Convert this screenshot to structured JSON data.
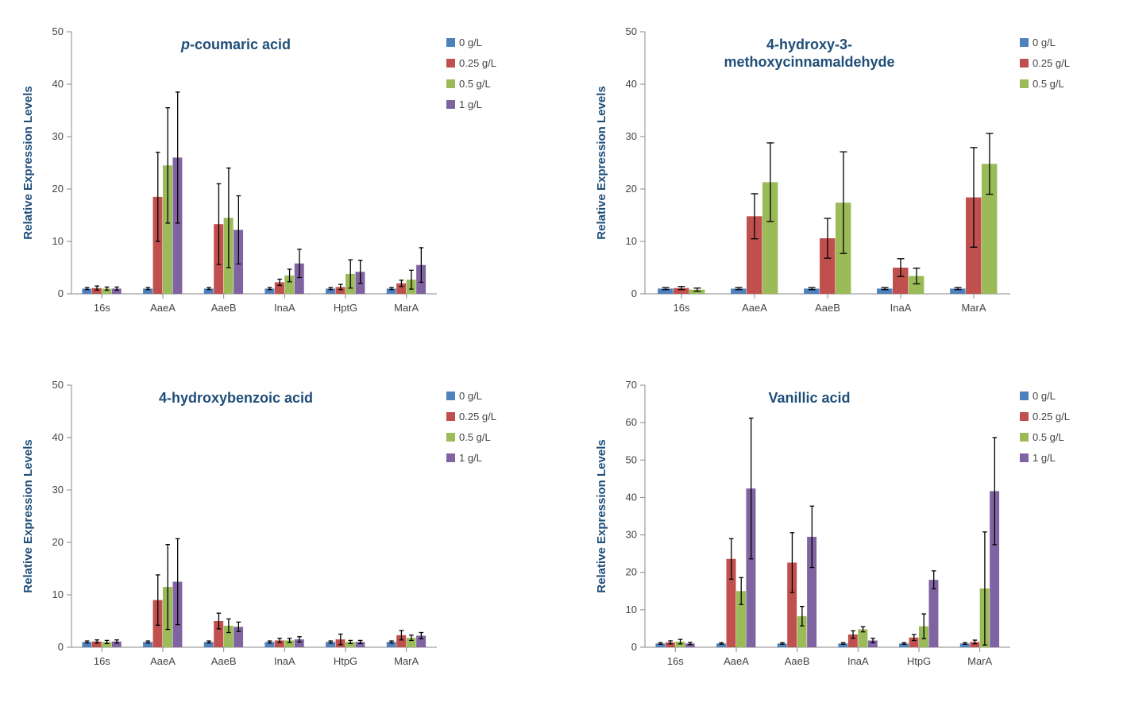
{
  "global": {
    "ylabel": "Relative Expression Levels",
    "label_fontsize": 15,
    "tick_fontsize": 13,
    "title_fontsize": 18,
    "legend_fontsize": 13,
    "background_color": "#ffffff",
    "axis_color": "#888888",
    "tick_color": "#888888",
    "text_color": "#444444",
    "title_color": "#1f4e79",
    "errorbar_color": "#000000",
    "errorbar_width": 1.3,
    "bar_gap_inner": 0,
    "bar_group_gap": 0.35,
    "series_colors": {
      "0 g/L": "#4f81bd",
      "0.25 g/L": "#c0504d",
      "0.5 g/L": "#9bbb59",
      "1 g/L": "#8064a2"
    }
  },
  "panels": [
    {
      "id": "p-coumaric",
      "title_lines": [
        "p-coumaric acid"
      ],
      "title_italic_prefix": "p",
      "ylim": [
        0,
        50
      ],
      "ytick_step": 10,
      "categories": [
        "16s",
        "AaeA",
        "AaeB",
        "InaA",
        "HptG",
        "MarA"
      ],
      "series": [
        "0 g/L",
        "0.25 g/L",
        "0.5 g/L",
        "1 g/L"
      ],
      "values": {
        "16s": [
          1.0,
          1.1,
          1.0,
          1.0
        ],
        "AaeA": [
          1.0,
          18.5,
          24.5,
          26.0
        ],
        "AaeB": [
          1.0,
          13.3,
          14.5,
          12.2
        ],
        "InaA": [
          1.0,
          2.2,
          3.5,
          5.8
        ],
        "HptG": [
          1.0,
          1.3,
          3.8,
          4.2
        ],
        "MarA": [
          1.0,
          2.0,
          2.7,
          5.5
        ]
      },
      "errors": {
        "16s": [
          0.2,
          0.4,
          0.3,
          0.3
        ],
        "AaeA": [
          0.2,
          8.5,
          11.0,
          12.5
        ],
        "AaeB": [
          0.2,
          7.7,
          9.5,
          6.5
        ],
        "InaA": [
          0.2,
          0.6,
          1.2,
          2.7
        ],
        "HptG": [
          0.2,
          0.5,
          2.7,
          2.2
        ],
        "MarA": [
          0.2,
          0.6,
          1.8,
          3.3
        ]
      }
    },
    {
      "id": "hydroxy-methoxy",
      "title_lines": [
        "4-hydroxy-3-",
        "methoxycinnamaldehyde"
      ],
      "ylim": [
        0,
        50
      ],
      "ytick_step": 10,
      "categories": [
        "16s",
        "AaeA",
        "AaeB",
        "InaA",
        "MarA"
      ],
      "series": [
        "0 g/L",
        "0.25 g/L",
        "0.5 g/L"
      ],
      "values": {
        "16s": [
          1.0,
          1.1,
          0.8
        ],
        "AaeA": [
          1.0,
          14.8,
          21.3
        ],
        "AaeB": [
          1.0,
          10.6,
          17.4
        ],
        "InaA": [
          1.0,
          5.0,
          3.4
        ],
        "MarA": [
          1.0,
          18.4,
          24.8
        ]
      },
      "errors": {
        "16s": [
          0.2,
          0.3,
          0.3
        ],
        "AaeA": [
          0.2,
          4.3,
          7.5
        ],
        "AaeB": [
          0.2,
          3.8,
          9.7
        ],
        "InaA": [
          0.2,
          1.7,
          1.5
        ],
        "MarA": [
          0.2,
          9.5,
          5.8
        ]
      }
    },
    {
      "id": "hydroxybenzoic",
      "title_lines": [
        "4-hydroxybenzoic acid"
      ],
      "ylim": [
        0,
        50
      ],
      "ytick_step": 10,
      "categories": [
        "16s",
        "AaeA",
        "AaeB",
        "InaA",
        "HtpG",
        "MarA"
      ],
      "series": [
        "0 g/L",
        "0.25 g/L",
        "0.5 g/L",
        "1 g/L"
      ],
      "values": {
        "16s": [
          1.0,
          1.1,
          1.0,
          1.1
        ],
        "AaeA": [
          1.0,
          9.0,
          11.5,
          12.5
        ],
        "AaeB": [
          1.0,
          5.0,
          4.1,
          3.9
        ],
        "InaA": [
          1.0,
          1.3,
          1.3,
          1.5
        ],
        "HtpG": [
          1.0,
          1.5,
          1.0,
          1.0
        ],
        "MarA": [
          1.0,
          2.3,
          1.8,
          2.2
        ]
      },
      "errors": {
        "16s": [
          0.2,
          0.3,
          0.3,
          0.3
        ],
        "AaeA": [
          0.2,
          4.8,
          8.1,
          8.2
        ],
        "AaeB": [
          0.2,
          1.5,
          1.3,
          0.9
        ],
        "InaA": [
          0.2,
          0.4,
          0.4,
          0.5
        ],
        "HtpG": [
          0.2,
          1.0,
          0.3,
          0.3
        ],
        "MarA": [
          0.2,
          0.9,
          0.5,
          0.6
        ]
      }
    },
    {
      "id": "vanillic",
      "title_lines": [
        "Vanillic acid"
      ],
      "ylim": [
        0,
        70
      ],
      "ytick_step": 10,
      "categories": [
        "16s",
        "AaeA",
        "AaeB",
        "InaA",
        "HtpG",
        "MarA"
      ],
      "series": [
        "0 g/L",
        "0.25 g/L",
        "0.5 g/L",
        "1 g/L"
      ],
      "values": {
        "16s": [
          1.0,
          1.3,
          1.5,
          1.0
        ],
        "AaeA": [
          1.0,
          23.6,
          15.0,
          42.4
        ],
        "AaeB": [
          1.0,
          22.6,
          8.3,
          29.5
        ],
        "InaA": [
          1.0,
          3.4,
          4.8,
          1.8
        ],
        "HtpG": [
          1.0,
          2.6,
          5.6,
          18.0
        ],
        "MarA": [
          1.0,
          1.4,
          15.7,
          41.7
        ]
      },
      "errors": {
        "16s": [
          0.2,
          0.4,
          0.6,
          0.3
        ],
        "AaeA": [
          0.2,
          5.4,
          3.6,
          18.8
        ],
        "AaeB": [
          0.2,
          8.0,
          2.6,
          8.2
        ],
        "InaA": [
          0.2,
          1.0,
          0.7,
          0.6
        ],
        "HtpG": [
          0.2,
          0.8,
          3.3,
          2.4
        ],
        "MarA": [
          0.2,
          0.5,
          15.1,
          14.3
        ]
      }
    }
  ]
}
